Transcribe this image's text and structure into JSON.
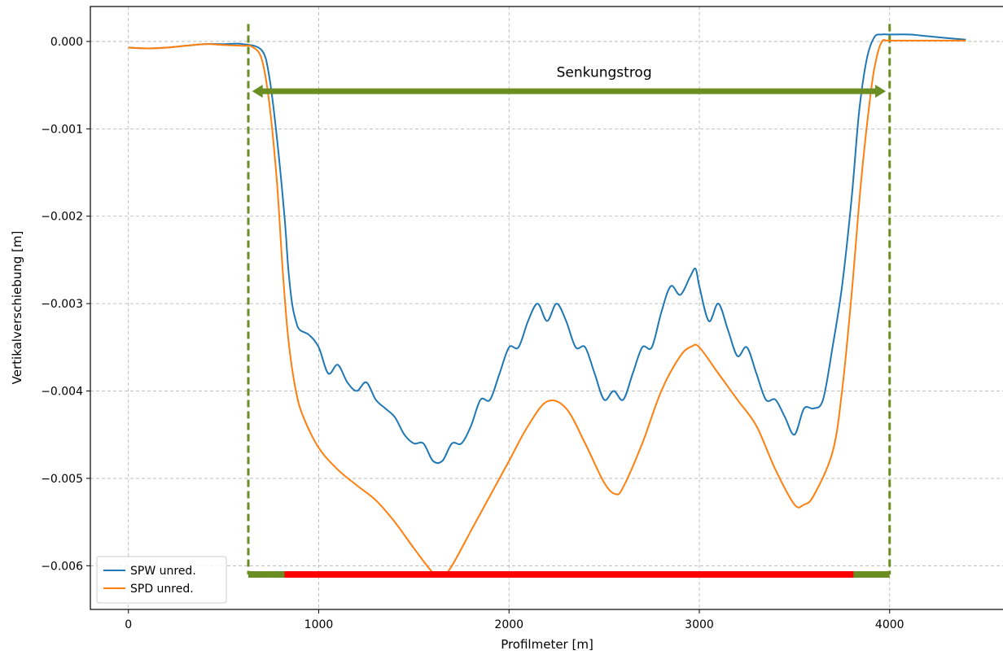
{
  "chart_data": {
    "type": "line",
    "xlabel": "Profilmeter [m]",
    "ylabel": "Vertikalverschiebung [m]",
    "xlim": [
      -200,
      4600
    ],
    "ylim": [
      -0.0065,
      0.0004
    ],
    "x_ticks": [
      0,
      1000,
      2000,
      3000,
      4000
    ],
    "x_tick_labels": [
      "0",
      "1000",
      "2000",
      "3000",
      "4000"
    ],
    "y_ticks": [
      0.0,
      -0.001,
      -0.002,
      -0.003,
      -0.004,
      -0.005,
      -0.006
    ],
    "y_tick_labels": [
      "0.000",
      "−0.001",
      "−0.002",
      "−0.003",
      "−0.004",
      "−0.005",
      "−0.006"
    ],
    "grid": true,
    "legend_position": "lower-left",
    "series": [
      {
        "name": "SPW unred.",
        "color": "#1f77b4",
        "points": [
          [
            0,
            -7e-05
          ],
          [
            100,
            -8e-05
          ],
          [
            200,
            -7e-05
          ],
          [
            300,
            -5e-05
          ],
          [
            400,
            -3e-05
          ],
          [
            500,
            -3e-05
          ],
          [
            600,
            -3e-05
          ],
          [
            700,
            -0.0001
          ],
          [
            740,
            -0.0004
          ],
          [
            780,
            -0.0011
          ],
          [
            820,
            -0.002
          ],
          [
            840,
            -0.0026
          ],
          [
            860,
            -0.003
          ],
          [
            880,
            -0.0032
          ],
          [
            900,
            -0.0033
          ],
          [
            950,
            -0.00336
          ],
          [
            1000,
            -0.0035
          ],
          [
            1050,
            -0.0038
          ],
          [
            1100,
            -0.0037
          ],
          [
            1150,
            -0.0039
          ],
          [
            1200,
            -0.004
          ],
          [
            1250,
            -0.0039
          ],
          [
            1300,
            -0.0041
          ],
          [
            1350,
            -0.0042
          ],
          [
            1400,
            -0.0043
          ],
          [
            1450,
            -0.0045
          ],
          [
            1500,
            -0.0046
          ],
          [
            1550,
            -0.0046
          ],
          [
            1600,
            -0.0048
          ],
          [
            1650,
            -0.0048
          ],
          [
            1700,
            -0.0046
          ],
          [
            1750,
            -0.0046
          ],
          [
            1800,
            -0.0044
          ],
          [
            1850,
            -0.0041
          ],
          [
            1900,
            -0.0041
          ],
          [
            1950,
            -0.0038
          ],
          [
            2000,
            -0.0035
          ],
          [
            2050,
            -0.0035
          ],
          [
            2100,
            -0.0032
          ],
          [
            2150,
            -0.003
          ],
          [
            2200,
            -0.0032
          ],
          [
            2250,
            -0.003
          ],
          [
            2300,
            -0.0032
          ],
          [
            2350,
            -0.0035
          ],
          [
            2400,
            -0.0035
          ],
          [
            2450,
            -0.0038
          ],
          [
            2500,
            -0.0041
          ],
          [
            2550,
            -0.004
          ],
          [
            2600,
            -0.0041
          ],
          [
            2650,
            -0.0038
          ],
          [
            2700,
            -0.0035
          ],
          [
            2750,
            -0.0035
          ],
          [
            2800,
            -0.0031
          ],
          [
            2850,
            -0.0028
          ],
          [
            2900,
            -0.0029
          ],
          [
            2950,
            -0.0027
          ],
          [
            2980,
            -0.0026
          ],
          [
            3000,
            -0.0028
          ],
          [
            3050,
            -0.0032
          ],
          [
            3100,
            -0.003
          ],
          [
            3150,
            -0.0033
          ],
          [
            3200,
            -0.0036
          ],
          [
            3250,
            -0.0035
          ],
          [
            3300,
            -0.0038
          ],
          [
            3350,
            -0.0041
          ],
          [
            3400,
            -0.0041
          ],
          [
            3450,
            -0.0043
          ],
          [
            3500,
            -0.0045
          ],
          [
            3550,
            -0.0042
          ],
          [
            3600,
            -0.0042
          ],
          [
            3650,
            -0.0041
          ],
          [
            3700,
            -0.0035
          ],
          [
            3750,
            -0.0028
          ],
          [
            3800,
            -0.0018
          ],
          [
            3840,
            -0.0008
          ],
          [
            3880,
            -0.0002
          ],
          [
            3920,
            5e-05
          ],
          [
            3960,
            8e-05
          ],
          [
            4000,
            8e-05
          ],
          [
            4100,
            8e-05
          ],
          [
            4200,
            6e-05
          ],
          [
            4300,
            4e-05
          ],
          [
            4400,
            2e-05
          ]
        ]
      },
      {
        "name": "SPD unred.",
        "color": "#ff7f0e",
        "points": [
          [
            0,
            -7e-05
          ],
          [
            100,
            -8e-05
          ],
          [
            200,
            -7e-05
          ],
          [
            300,
            -5e-05
          ],
          [
            400,
            -3e-05
          ],
          [
            500,
            -4e-05
          ],
          [
            600,
            -5e-05
          ],
          [
            650,
            -6e-05
          ],
          [
            700,
            -0.0002
          ],
          [
            740,
            -0.0007
          ],
          [
            780,
            -0.0016
          ],
          [
            810,
            -0.0026
          ],
          [
            840,
            -0.0034
          ],
          [
            880,
            -0.004
          ],
          [
            920,
            -0.0043
          ],
          [
            1000,
            -0.00465
          ],
          [
            1100,
            -0.0049
          ],
          [
            1200,
            -0.00508
          ],
          [
            1300,
            -0.00525
          ],
          [
            1400,
            -0.0055
          ],
          [
            1500,
            -0.0058
          ],
          [
            1600,
            -0.00608
          ],
          [
            1650,
            -0.00612
          ],
          [
            1700,
            -0.006
          ],
          [
            1800,
            -0.0056
          ],
          [
            1900,
            -0.0052
          ],
          [
            2000,
            -0.0048
          ],
          [
            2100,
            -0.0044
          ],
          [
            2200,
            -0.00412
          ],
          [
            2300,
            -0.0042
          ],
          [
            2400,
            -0.0046
          ],
          [
            2500,
            -0.00505
          ],
          [
            2560,
            -0.00518
          ],
          [
            2600,
            -0.0051
          ],
          [
            2700,
            -0.0046
          ],
          [
            2800,
            -0.004
          ],
          [
            2900,
            -0.0036
          ],
          [
            2960,
            -0.00349
          ],
          [
            3000,
            -0.0035
          ],
          [
            3100,
            -0.0038
          ],
          [
            3200,
            -0.0041
          ],
          [
            3300,
            -0.0044
          ],
          [
            3400,
            -0.0049
          ],
          [
            3500,
            -0.0053
          ],
          [
            3550,
            -0.0053
          ],
          [
            3600,
            -0.0052
          ],
          [
            3700,
            -0.0047
          ],
          [
            3750,
            -0.004
          ],
          [
            3800,
            -0.0029
          ],
          [
            3850,
            -0.0016
          ],
          [
            3900,
            -0.0006
          ],
          [
            3930,
            -0.0002
          ],
          [
            3960,
            0.0
          ],
          [
            4000,
            1e-05
          ],
          [
            4200,
            1e-05
          ],
          [
            4400,
            1e-05
          ]
        ]
      }
    ],
    "annotations": [
      {
        "type": "vertical-dashed-line",
        "x": 630,
        "y_range": [
          -0.0061,
          0.0002
        ],
        "color": "#6b8e23"
      },
      {
        "type": "vertical-dashed-line",
        "x": 4000,
        "y_range": [
          -0.0061,
          0.0002
        ],
        "color": "#6b8e23"
      },
      {
        "type": "double-arrow",
        "x_range": [
          650,
          3980
        ],
        "y": -0.00057,
        "color": "#6b8e23",
        "label": "Senkungstrog",
        "label_x": 2500,
        "label_y": -0.00035
      },
      {
        "type": "bar",
        "x_range": [
          630,
          4000
        ],
        "y": -0.0061,
        "color": "#6b8e23"
      },
      {
        "type": "bar",
        "x_range": [
          820,
          3810
        ],
        "y": -0.0061,
        "color": "#ff0000"
      }
    ]
  }
}
